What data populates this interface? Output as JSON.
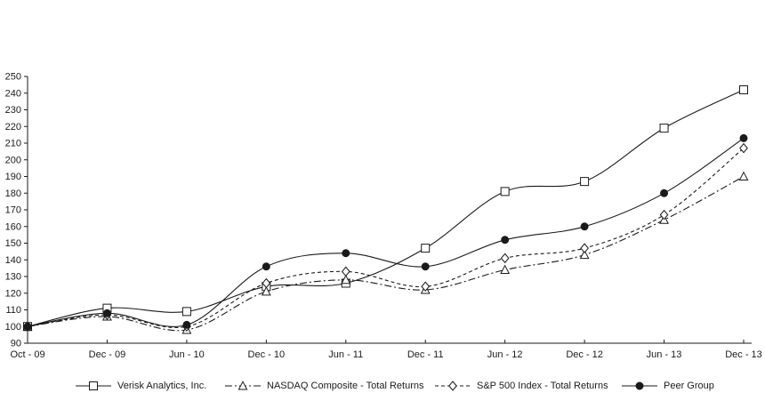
{
  "chart_data": {
    "type": "line",
    "title": "",
    "xlabel": "",
    "ylabel": "",
    "x_categories": [
      "Oct - 09",
      "Dec - 09",
      "Jun - 10",
      "Dec - 10",
      "Jun - 11",
      "Dec - 11",
      "Jun - 12",
      "Dec - 12",
      "Jun - 13",
      "Dec - 13"
    ],
    "ylim": [
      90,
      250
    ],
    "ytick_step": 10,
    "ytick_labels": [
      "90",
      "100",
      "110",
      "120",
      "130",
      "140",
      "150",
      "160",
      "170",
      "180",
      "190",
      "200",
      "210",
      "220",
      "230",
      "240",
      "250"
    ],
    "grid": false,
    "legend_position": "bottom",
    "background_color": "#ffffff",
    "line_color": "#1a1a1a",
    "series": [
      {
        "name": "Verisk Analytics, Inc.",
        "marker": "open-square",
        "line_style": "solid",
        "values": [
          100,
          111,
          109,
          124,
          126,
          147,
          181,
          187,
          219,
          242
        ]
      },
      {
        "name": "NASDAQ Composite - Total Returns",
        "marker": "open-triangle",
        "line_style": "dash-dot",
        "values": [
          100,
          106,
          98,
          121,
          128,
          122,
          134,
          143,
          164,
          190
        ]
      },
      {
        "name": "S&P 500 Index - Total Returns",
        "marker": "open-diamond",
        "line_style": "dashed",
        "values": [
          100,
          107,
          100,
          126,
          133,
          124,
          141,
          147,
          167,
          207
        ]
      },
      {
        "name": "Peer Group",
        "marker": "filled-circle",
        "line_style": "solid",
        "values": [
          100,
          108,
          101,
          136,
          144,
          136,
          152,
          160,
          180,
          213
        ]
      }
    ]
  }
}
